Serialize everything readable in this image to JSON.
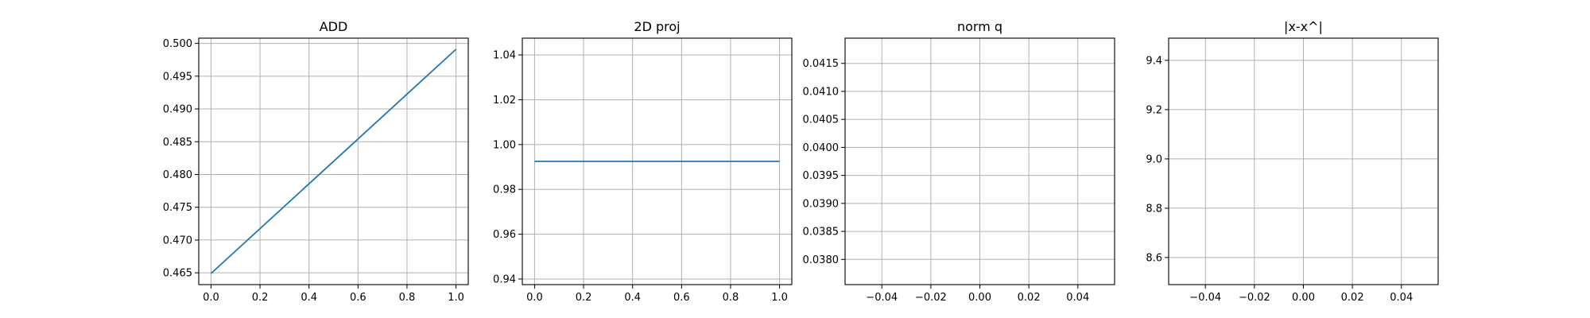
{
  "chart_data": [
    {
      "type": "line",
      "title": "ADD",
      "xlabel": "",
      "ylabel": "",
      "xlim": [
        -0.05,
        1.05
      ],
      "ylim": [
        0.4632,
        0.5008
      ],
      "grid": true,
      "xticks": [
        0.0,
        0.2,
        0.4,
        0.6,
        0.8,
        1.0
      ],
      "xtick_labels": [
        "0.0",
        "0.2",
        "0.4",
        "0.6",
        "0.8",
        "1.0"
      ],
      "yticks": [
        0.465,
        0.47,
        0.475,
        0.48,
        0.485,
        0.49,
        0.495,
        0.5
      ],
      "ytick_labels": [
        "0.465",
        "0.470",
        "0.475",
        "0.480",
        "0.485",
        "0.490",
        "0.495",
        "0.500"
      ],
      "series": [
        {
          "x": [
            0.0,
            1.0
          ],
          "y": [
            0.4649,
            0.4991
          ]
        }
      ]
    },
    {
      "type": "line",
      "title": "2D proj",
      "xlabel": "",
      "ylabel": "",
      "xlim": [
        -0.05,
        1.05
      ],
      "ylim": [
        0.9375,
        1.0475
      ],
      "grid": true,
      "xticks": [
        0.0,
        0.2,
        0.4,
        0.6,
        0.8,
        1.0
      ],
      "xtick_labels": [
        "0.0",
        "0.2",
        "0.4",
        "0.6",
        "0.8",
        "1.0"
      ],
      "yticks": [
        0.94,
        0.96,
        0.98,
        1.0,
        1.02,
        1.04
      ],
      "ytick_labels": [
        "0.94",
        "0.96",
        "0.98",
        "1.00",
        "1.02",
        "1.04"
      ],
      "series": [
        {
          "x": [
            0.0,
            1.0
          ],
          "y": [
            0.9925,
            0.9925
          ]
        }
      ]
    },
    {
      "type": "line",
      "title": "norm q",
      "xlabel": "",
      "ylabel": "",
      "xlim": [
        -0.055,
        0.055
      ],
      "ylim": [
        0.03755,
        0.04195
      ],
      "grid": true,
      "xticks": [
        -0.04,
        -0.02,
        0.0,
        0.02,
        0.04
      ],
      "xtick_labels": [
        "−0.04",
        "−0.02",
        "0.00",
        "0.02",
        "0.04"
      ],
      "yticks": [
        0.038,
        0.0385,
        0.039,
        0.0395,
        0.04,
        0.0405,
        0.041,
        0.0415
      ],
      "ytick_labels": [
        "0.0380",
        "0.0385",
        "0.0390",
        "0.0395",
        "0.0400",
        "0.0405",
        "0.0410",
        "0.0415"
      ],
      "series": [
        {
          "x": [],
          "y": []
        }
      ]
    },
    {
      "type": "line",
      "title": "|x-x^|",
      "xlabel": "",
      "ylabel": "",
      "xlim": [
        -0.055,
        0.055
      ],
      "ylim": [
        8.49,
        9.49
      ],
      "grid": true,
      "xticks": [
        -0.04,
        -0.02,
        0.0,
        0.02,
        0.04
      ],
      "xtick_labels": [
        "−0.04",
        "−0.02",
        "0.00",
        "0.02",
        "0.04"
      ],
      "yticks": [
        8.6,
        8.8,
        9.0,
        9.2,
        9.4
      ],
      "ytick_labels": [
        "8.6",
        "8.8",
        "9.0",
        "9.2",
        "9.4"
      ],
      "series": [
        {
          "x": [],
          "y": []
        }
      ]
    }
  ],
  "colors": {
    "line": "#1f77b4",
    "grid": "#b0b0b0",
    "axes": "#000000",
    "background": "#ffffff"
  }
}
